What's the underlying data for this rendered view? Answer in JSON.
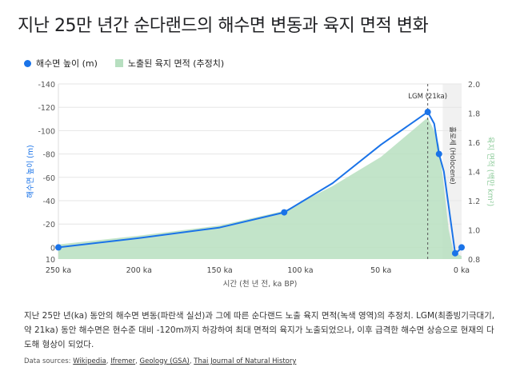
{
  "title": "지난 25만 년간 순다랜드의 해수면 변동과 육지 면적 변화",
  "chart_data": {
    "type": "line+area",
    "xlabel": "시간 (천 년 전, ka BP)",
    "xlim": [
      250,
      0
    ],
    "xticks": [
      "250 ka",
      "200 ka",
      "150 ka",
      "100 ka",
      "50 ka",
      "0 ka"
    ],
    "xtick_values": [
      250,
      200,
      150,
      100,
      50,
      0
    ],
    "y_left": {
      "label": "해수면 높이 (m)",
      "range": [
        10,
        -140
      ],
      "ticks": [
        "-140",
        "-120",
        "-100",
        "-80",
        "-60",
        "-40",
        "-20",
        "0",
        "10"
      ],
      "tick_values": [
        -140,
        -120,
        -100,
        -80,
        -60,
        -40,
        -20,
        0,
        10
      ]
    },
    "y_right": {
      "label": "육지 면적 (백만 km²)",
      "range": [
        0.8,
        2.0
      ],
      "ticks": [
        "2.0",
        "1.8",
        "1.6",
        "1.4",
        "1.2",
        "1.0",
        "0.8"
      ],
      "tick_values": [
        2.0,
        1.8,
        1.6,
        1.4,
        1.2,
        1.0,
        0.8
      ]
    },
    "grid": true,
    "legend_position": "top-left",
    "series": [
      {
        "name": "해수면 높이 (m)",
        "axis": "left",
        "color": "#1a73e8",
        "markers": [
          [
            250,
            0
          ],
          [
            110,
            -30
          ],
          [
            21,
            -116
          ],
          [
            14,
            -80
          ],
          [
            4,
            5
          ],
          [
            0,
            0
          ]
        ],
        "values": [
          [
            250,
            0
          ],
          [
            200,
            -8
          ],
          [
            150,
            -17
          ],
          [
            110,
            -30
          ],
          [
            80,
            -55
          ],
          [
            50,
            -88
          ],
          [
            21,
            -116
          ],
          [
            17,
            -106
          ],
          [
            14,
            -80
          ],
          [
            11,
            -65
          ],
          [
            8,
            -35
          ],
          [
            4,
            5
          ],
          [
            2,
            3
          ],
          [
            0,
            0
          ]
        ]
      },
      {
        "name": "노출된 육지 면적 (추정치)",
        "axis": "right",
        "color": "#b7dfc0",
        "values": [
          [
            250,
            0.9
          ],
          [
            200,
            0.96
          ],
          [
            150,
            1.03
          ],
          [
            110,
            1.13
          ],
          [
            80,
            1.3
          ],
          [
            50,
            1.5
          ],
          [
            21,
            1.77
          ],
          [
            17,
            1.68
          ],
          [
            14,
            1.58
          ],
          [
            11,
            1.3
          ],
          [
            8,
            1.0
          ],
          [
            5,
            0.85
          ],
          [
            0,
            0.82
          ]
        ]
      }
    ],
    "annotations": [
      {
        "x": 21,
        "label": "LGM (21ka)"
      },
      {
        "x_range": [
          11.7,
          0
        ],
        "label": "홀로세 (Holocene)"
      }
    ]
  },
  "caption": "지난 25만 년(ka) 동안의 해수면 변동(파란색 실선)과 그에 따른 순다랜드 노출 육지 면적(녹색 영역)의 추정치. LGM(최종빙기극대기, 약 21ka) 동안 해수면은 현수준 대비 -120m까지 하강하여 최대 면적의 육지가 노출되었으나, 이후 급격한 해수면 상승으로 현재의 다도해 형상이 되었다.",
  "sources": {
    "prefix": "Data sources: ",
    "links": [
      "Wikipedia",
      "Ifremer",
      "Geology (GSA)",
      "Thai Journal of Natural History"
    ]
  }
}
